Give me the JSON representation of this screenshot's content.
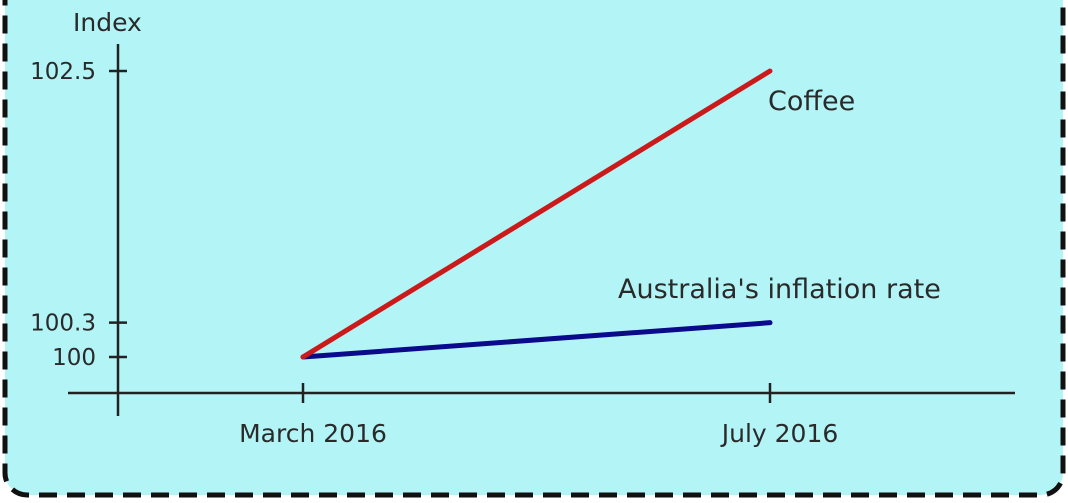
{
  "colors": {
    "panel_background": "#b3f5f7",
    "panel_border": "#111111",
    "axis": "#222222",
    "coffee_line": "#cc1a1a",
    "inflation_line": "#0a0a8a"
  },
  "chart_data": {
    "type": "line",
    "title": "",
    "xlabel": "",
    "ylabel": "Index",
    "categories": [
      "March 2016",
      "July 2016"
    ],
    "yticks": [
      {
        "value": 100,
        "label": "100"
      },
      {
        "value": 100.3,
        "label": "100.3"
      },
      {
        "value": 102.5,
        "label": "102.5"
      }
    ],
    "series": [
      {
        "name": "Coffee",
        "color": "#cc1a1a",
        "values": [
          100,
          102.5
        ]
      },
      {
        "name": "Australia's inflation rate",
        "color": "#0a0a8a",
        "values": [
          100,
          100.3
        ]
      }
    ],
    "grid": false,
    "legend": "inline labels near line ends"
  }
}
